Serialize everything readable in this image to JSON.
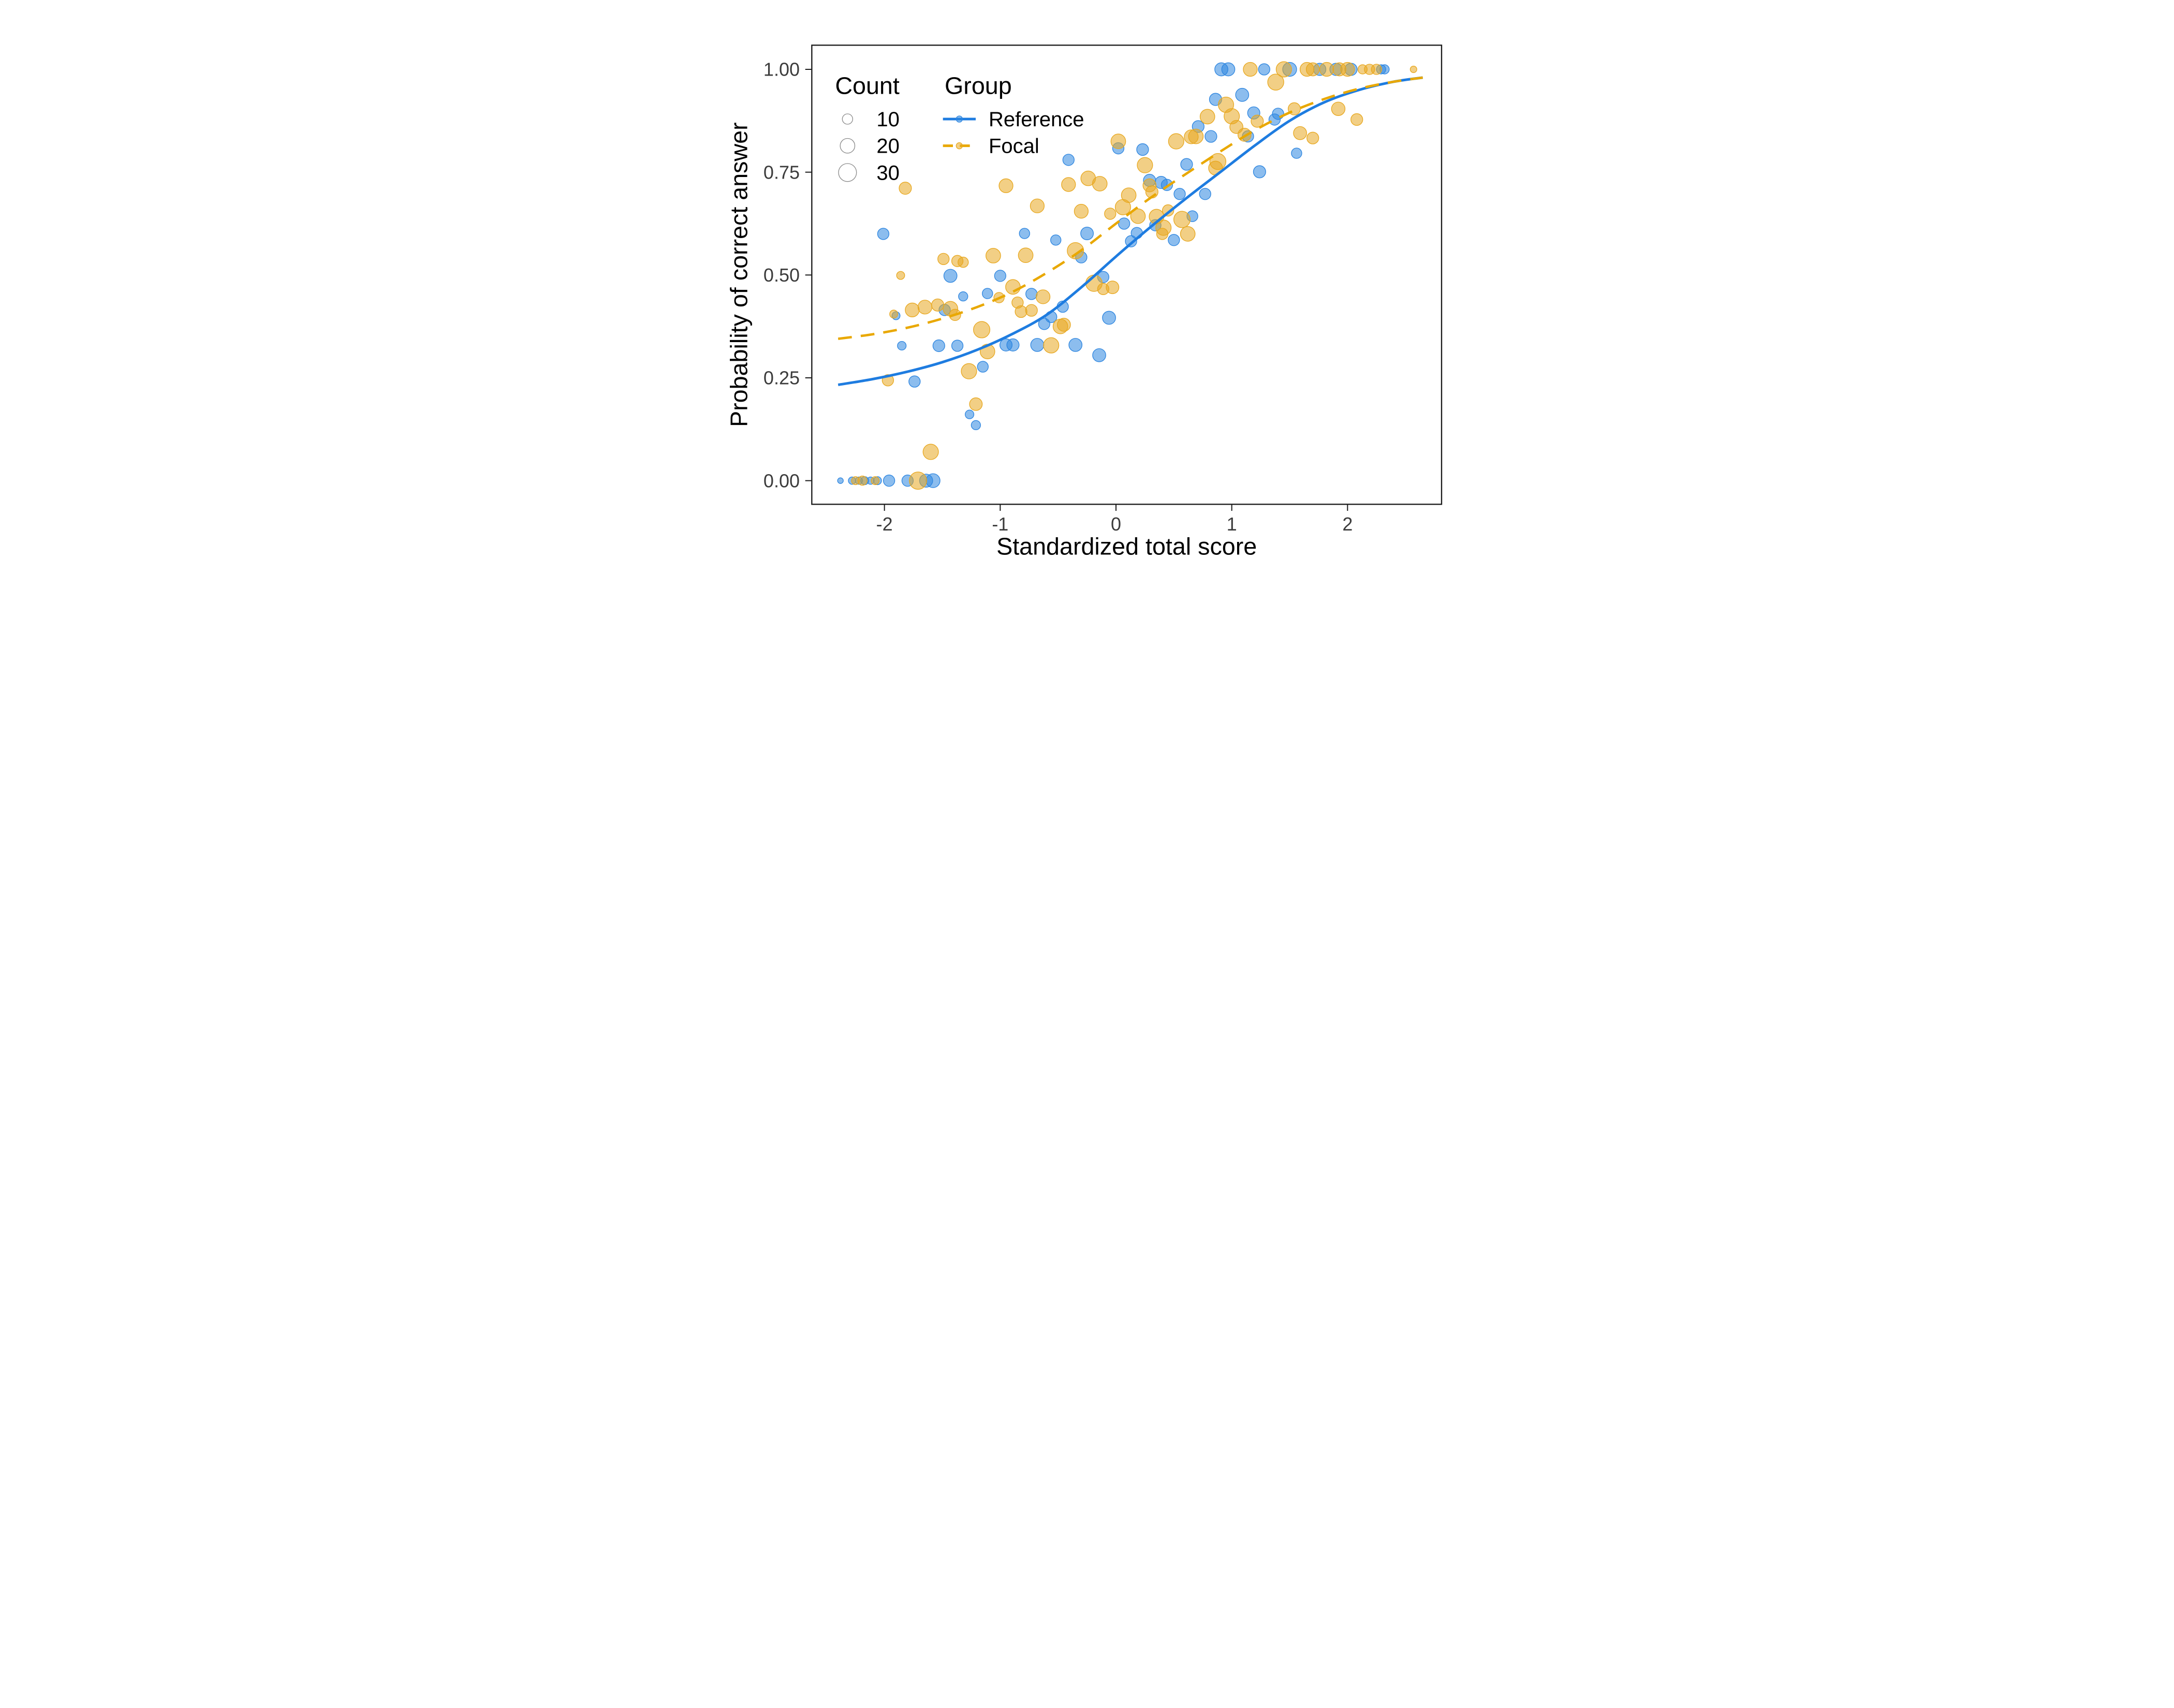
{
  "figure": {
    "background": "#FFFFFF"
  },
  "axes": {
    "x": {
      "label": "Standardized total score",
      "ticks": [
        "-2",
        "-1",
        "0",
        "1",
        "2"
      ],
      "tick_values": [
        -2,
        -1,
        0,
        1,
        2
      ]
    },
    "y": {
      "label": "Probability of correct answer",
      "ticks": [
        "0.00",
        "0.25",
        "0.50",
        "0.75",
        "1.00"
      ],
      "tick_values": [
        0,
        0.25,
        0.5,
        0.75,
        1
      ]
    }
  },
  "legend": {
    "count": {
      "title": "Count",
      "items": [
        {
          "value": 10,
          "label": "10"
        },
        {
          "value": 20,
          "label": "20"
        },
        {
          "value": 30,
          "label": "30"
        }
      ]
    },
    "group": {
      "title": "Group",
      "items": [
        {
          "name": "reference",
          "label": "Reference",
          "style": "solid"
        },
        {
          "name": "focal",
          "label": "Focal",
          "style": "dashed"
        }
      ]
    }
  },
  "colors": {
    "reference": "#2E86E0",
    "focal": "#E8A820",
    "reference_curve": "#1E7CE0",
    "focal_curve": "#E9A800",
    "axis_text": "#3C3C3C",
    "axis_title": "#000000",
    "panel_border": "#1A1A1A",
    "legend_circle": "#8A8A8A"
  },
  "chart_data": {
    "type": "scatter",
    "xlabel": "Standardized total score",
    "ylabel": "Probability of correct answer",
    "xlim": [
      -2.63,
      2.81
    ],
    "ylim": [
      -0.06,
      1.06
    ],
    "grid": false,
    "legend_position": "top-left-inside",
    "size_legend": {
      "title": "Count",
      "values": [
        10,
        20,
        30
      ]
    },
    "series": [
      {
        "name": "Reference",
        "color": "#2E86E0",
        "points": [
          [
            0.91,
            1.0,
            16
          ],
          [
            0.97,
            1.0,
            16
          ],
          [
            1.28,
            1.0,
            12
          ],
          [
            1.5,
            1.0,
            18
          ],
          [
            1.76,
            1.0,
            14
          ],
          [
            1.9,
            1.0,
            14
          ],
          [
            2.03,
            1.0,
            14
          ],
          [
            2.29,
            1.0,
            8
          ],
          [
            2.32,
            1.0,
            8
          ],
          [
            1.09,
            0.938,
            16
          ],
          [
            0.86,
            0.927,
            14
          ],
          [
            1.19,
            0.894,
            14
          ],
          [
            1.4,
            0.892,
            12
          ],
          [
            1.37,
            0.878,
            12
          ],
          [
            0.71,
            0.861,
            13
          ],
          [
            0.82,
            0.837,
            13
          ],
          [
            1.14,
            0.837,
            12
          ],
          [
            0.02,
            0.808,
            12
          ],
          [
            0.23,
            0.805,
            13
          ],
          [
            1.56,
            0.796,
            10
          ],
          [
            -0.41,
            0.78,
            12
          ],
          [
            0.61,
            0.769,
            13
          ],
          [
            1.24,
            0.751,
            14
          ],
          [
            0.29,
            0.73,
            14
          ],
          [
            0.39,
            0.725,
            14
          ],
          [
            0.44,
            0.719,
            12
          ],
          [
            0.55,
            0.697,
            12
          ],
          [
            0.77,
            0.697,
            12
          ],
          [
            0.66,
            0.643,
            11
          ],
          [
            0.34,
            0.621,
            12
          ],
          [
            0.18,
            0.602,
            12
          ],
          [
            0.13,
            0.582,
            12
          ],
          [
            0.07,
            0.625,
            12
          ],
          [
            -0.79,
            0.601,
            10
          ],
          [
            -0.52,
            0.585,
            10
          ],
          [
            -0.25,
            0.601,
            15
          ],
          [
            0.5,
            0.585,
            12
          ],
          [
            -2.01,
            0.6,
            12
          ],
          [
            -0.3,
            0.543,
            12
          ],
          [
            -1.43,
            0.498,
            16
          ],
          [
            -1.0,
            0.498,
            12
          ],
          [
            -1.11,
            0.455,
            10
          ],
          [
            -1.32,
            0.448,
            8
          ],
          [
            -0.73,
            0.454,
            12
          ],
          [
            -0.46,
            0.423,
            12
          ],
          [
            -0.11,
            0.495,
            12
          ],
          [
            -1.48,
            0.415,
            12
          ],
          [
            -1.9,
            0.401,
            6
          ],
          [
            -0.62,
            0.381,
            12
          ],
          [
            -0.56,
            0.398,
            12
          ],
          [
            -0.06,
            0.396,
            16
          ],
          [
            -1.85,
            0.328,
            7
          ],
          [
            -1.53,
            0.328,
            13
          ],
          [
            -1.37,
            0.328,
            12
          ],
          [
            -0.95,
            0.33,
            14
          ],
          [
            -0.89,
            0.33,
            14
          ],
          [
            -0.68,
            0.33,
            16
          ],
          [
            -0.35,
            0.33,
            16
          ],
          [
            -0.145,
            0.305,
            16
          ],
          [
            -1.15,
            0.277,
            11
          ],
          [
            -1.74,
            0.241,
            12
          ],
          [
            -1.265,
            0.161,
            7
          ],
          [
            -1.21,
            0.135,
            8
          ],
          [
            -2.38,
            0,
            3
          ],
          [
            -2.28,
            0,
            5
          ],
          [
            -2.22,
            0,
            5
          ],
          [
            -2.17,
            0,
            6
          ],
          [
            -2.12,
            0,
            5
          ],
          [
            -2.06,
            0,
            6
          ],
          [
            -1.96,
            0,
            12
          ],
          [
            -1.8,
            0,
            12
          ],
          [
            -1.64,
            0,
            16
          ],
          [
            -1.58,
            0,
            18
          ]
        ]
      },
      {
        "name": "Focal",
        "color": "#E8A820",
        "points": [
          [
            1.16,
            1.0,
            18
          ],
          [
            1.45,
            1.0,
            22
          ],
          [
            1.65,
            1.0,
            18
          ],
          [
            1.7,
            1.0,
            16
          ],
          [
            1.82,
            1.0,
            18
          ],
          [
            1.93,
            1.0,
            16
          ],
          [
            2.0,
            1.0,
            18
          ],
          [
            2.13,
            1.0,
            8
          ],
          [
            2.19,
            1.0,
            10
          ],
          [
            2.25,
            1.0,
            10
          ],
          [
            2.57,
            1.0,
            4
          ],
          [
            1.38,
            0.969,
            24
          ],
          [
            0.95,
            0.914,
            22
          ],
          [
            1.54,
            0.904,
            14
          ],
          [
            1.92,
            0.904,
            17
          ],
          [
            1.0,
            0.886,
            22
          ],
          [
            0.79,
            0.885,
            20
          ],
          [
            2.08,
            0.878,
            13
          ],
          [
            1.22,
            0.874,
            14
          ],
          [
            1.04,
            0.86,
            16
          ],
          [
            1.59,
            0.845,
            16
          ],
          [
            1.11,
            0.841,
            16
          ],
          [
            0.69,
            0.837,
            20
          ],
          [
            0.65,
            0.836,
            18
          ],
          [
            1.7,
            0.833,
            13
          ],
          [
            0.52,
            0.825,
            22
          ],
          [
            0.02,
            0.825,
            20
          ],
          [
            0.25,
            0.767,
            22
          ],
          [
            0.88,
            0.776,
            24
          ],
          [
            0.86,
            0.76,
            18
          ],
          [
            -0.24,
            0.735,
            20
          ],
          [
            -0.14,
            0.722,
            20
          ],
          [
            -0.41,
            0.72,
            18
          ],
          [
            -0.95,
            0.717,
            18
          ],
          [
            -1.82,
            0.711,
            14
          ],
          [
            0.29,
            0.718,
            16
          ],
          [
            0.31,
            0.702,
            14
          ],
          [
            0.11,
            0.694,
            20
          ],
          [
            0.06,
            0.665,
            22
          ],
          [
            -0.68,
            0.668,
            18
          ],
          [
            0.19,
            0.643,
            20
          ],
          [
            0.35,
            0.642,
            20
          ],
          [
            0.45,
            0.657,
            12
          ],
          [
            0.57,
            0.635,
            25
          ],
          [
            0.62,
            0.6,
            20
          ],
          [
            0.41,
            0.615,
            22
          ],
          [
            0.4,
            0.6,
            12
          ],
          [
            -0.3,
            0.655,
            18
          ],
          [
            -0.05,
            0.649,
            12
          ],
          [
            -0.35,
            0.559,
            25
          ],
          [
            -1.06,
            0.547,
            20
          ],
          [
            -0.78,
            0.548,
            20
          ],
          [
            -1.32,
            0.531,
            10
          ],
          [
            -1.49,
            0.539,
            12
          ],
          [
            -1.37,
            0.534,
            12
          ],
          [
            -1.86,
            0.499,
            6
          ],
          [
            -0.89,
            0.471,
            20
          ],
          [
            -1.01,
            0.445,
            10
          ],
          [
            -0.85,
            0.433,
            12
          ],
          [
            -0.63,
            0.447,
            18
          ],
          [
            -0.19,
            0.48,
            25
          ],
          [
            -0.11,
            0.466,
            12
          ],
          [
            -0.03,
            0.47,
            15
          ],
          [
            -1.76,
            0.415,
            18
          ],
          [
            -1.65,
            0.422,
            18
          ],
          [
            -1.54,
            0.427,
            14
          ],
          [
            -1.43,
            0.418,
            20
          ],
          [
            -1.39,
            0.403,
            12
          ],
          [
            -1.92,
            0.405,
            6
          ],
          [
            -0.82,
            0.411,
            13
          ],
          [
            -0.73,
            0.414,
            13
          ],
          [
            -0.48,
            0.375,
            20
          ],
          [
            -0.45,
            0.379,
            16
          ],
          [
            -1.16,
            0.367,
            25
          ],
          [
            -0.56,
            0.329,
            22
          ],
          [
            -1.11,
            0.314,
            20
          ],
          [
            -1.27,
            0.266,
            22
          ],
          [
            -1.97,
            0.244,
            12
          ],
          [
            -1.21,
            0.186,
            15
          ],
          [
            -1.6,
            0.07,
            22
          ],
          [
            -2.25,
            0,
            6
          ],
          [
            -2.19,
            0,
            8
          ],
          [
            -2.08,
            0,
            6
          ],
          [
            -1.71,
            0,
            28
          ]
        ]
      }
    ],
    "curves": [
      {
        "name": "Reference",
        "style": "solid",
        "x": [
          -2.4,
          -2.1,
          -1.8,
          -1.5,
          -1.2,
          -0.9,
          -0.6,
          -0.3,
          0,
          0.3,
          0.6,
          0.9,
          1.2,
          1.5,
          1.8,
          2.1,
          2.4,
          2.65
        ],
        "y": [
          0.233,
          0.247,
          0.265,
          0.288,
          0.318,
          0.356,
          0.403,
          0.47,
          0.545,
          0.617,
          0.685,
          0.75,
          0.815,
          0.875,
          0.92,
          0.95,
          0.97,
          0.98
        ]
      },
      {
        "name": "Focal",
        "style": "dashed",
        "x": [
          -2.4,
          -2.1,
          -1.8,
          -1.5,
          -1.2,
          -0.9,
          -0.6,
          -0.3,
          0,
          0.3,
          0.6,
          0.9,
          1.2,
          1.5,
          1.8,
          2.1,
          2.4,
          2.65
        ],
        "y": [
          0.345,
          0.356,
          0.372,
          0.394,
          0.422,
          0.458,
          0.505,
          0.56,
          0.625,
          0.688,
          0.745,
          0.8,
          0.852,
          0.895,
          0.928,
          0.953,
          0.97,
          0.98
        ]
      }
    ]
  }
}
